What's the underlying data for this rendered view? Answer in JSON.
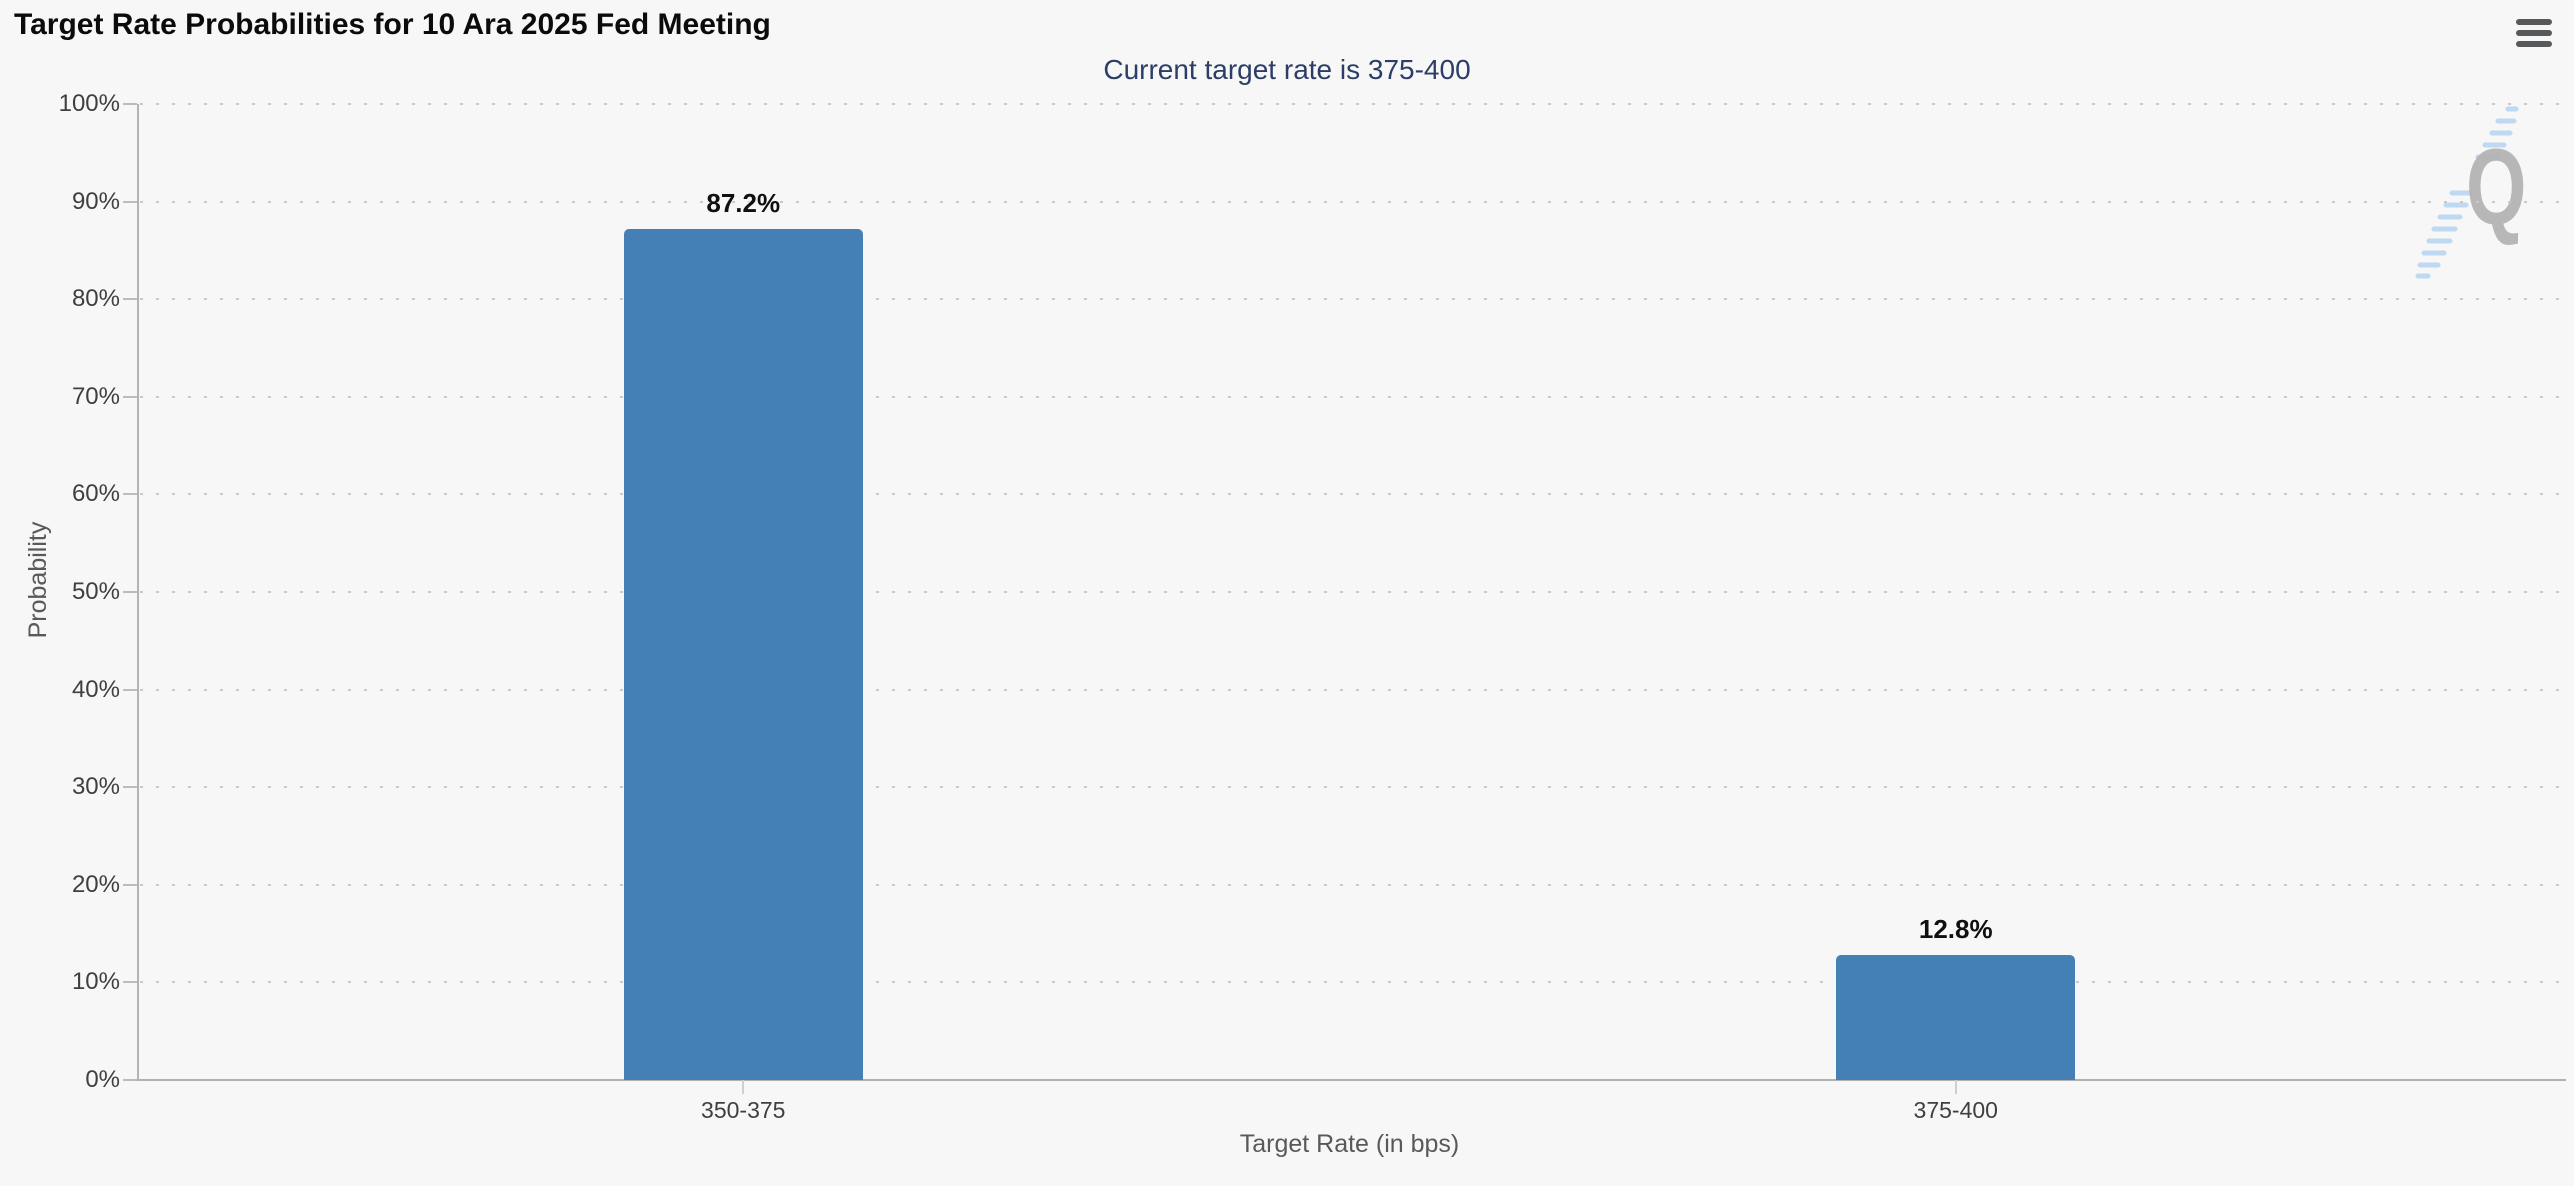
{
  "header": {
    "menu_icon": "hamburger-icon"
  },
  "chart_data": {
    "type": "bar",
    "title": "Target Rate Probabilities for 10 Ara 2025 Fed Meeting",
    "subtitle": "Current target rate is 375-400",
    "categories": [
      "350-375",
      "375-400"
    ],
    "values": [
      87.2,
      12.8
    ],
    "value_labels": [
      "87.2%",
      "12.8%"
    ],
    "xlabel": "Target Rate (in bps)",
    "ylabel": "Probability",
    "ylim": [
      0,
      100
    ],
    "ytick_step": 10,
    "ytick_labels": [
      "0%",
      "10%",
      "20%",
      "30%",
      "40%",
      "50%",
      "60%",
      "70%",
      "80%",
      "90%",
      "100%"
    ],
    "grid": "dotted-horizontal",
    "legend_position": "none",
    "bar_color": "#4480b5",
    "subtitle_color": "#2c3e68",
    "axis_line_color": "#b3b3b3",
    "grid_dot_color": "#c9c9c9"
  },
  "watermark": {
    "letter": "Q"
  }
}
